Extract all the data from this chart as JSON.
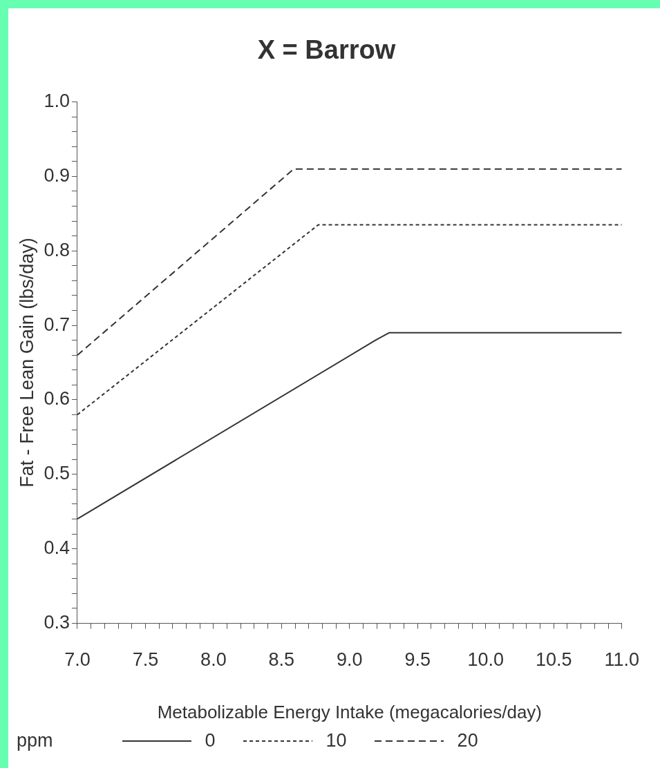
{
  "chart_data": {
    "type": "line",
    "title": "X = Barrow",
    "xlabel": "Metabolizable Energy Intake (megacalories/day)",
    "ylabel": "Fat - Free Lean Gain (lbs/day)",
    "legend_title": "ppm",
    "legend": "bottom",
    "xlim": [
      7.0,
      11.0
    ],
    "xticks": [
      {
        "value": 7.0,
        "label": "7.0"
      },
      {
        "value": 7.1,
        "label": null
      },
      {
        "value": 7.2,
        "label": null
      },
      {
        "value": 7.3,
        "label": null
      },
      {
        "value": 7.4,
        "label": null
      },
      {
        "value": 7.5,
        "label": "7.5"
      },
      {
        "value": 7.6,
        "label": null
      },
      {
        "value": 7.7,
        "label": null
      },
      {
        "value": 7.8,
        "label": null
      },
      {
        "value": 7.9,
        "label": null
      },
      {
        "value": 8.0,
        "label": "8.0"
      },
      {
        "value": 8.1,
        "label": null
      },
      {
        "value": 8.2,
        "label": null
      },
      {
        "value": 8.3,
        "label": null
      },
      {
        "value": 8.4,
        "label": null
      },
      {
        "value": 8.5,
        "label": "8.5"
      },
      {
        "value": 8.6,
        "label": null
      },
      {
        "value": 8.7,
        "label": null
      },
      {
        "value": 8.8,
        "label": null
      },
      {
        "value": 8.9,
        "label": null
      },
      {
        "value": 9.0,
        "label": "9.0"
      },
      {
        "value": 9.1,
        "label": null
      },
      {
        "value": 9.2,
        "label": null
      },
      {
        "value": 9.3,
        "label": null
      },
      {
        "value": 9.4,
        "label": null
      },
      {
        "value": 9.5,
        "label": "9.5"
      },
      {
        "value": 9.6,
        "label": null
      },
      {
        "value": 9.7,
        "label": null
      },
      {
        "value": 9.8,
        "label": null
      },
      {
        "value": 9.9,
        "label": null
      },
      {
        "value": 10.0,
        "label": "10.0"
      },
      {
        "value": 10.1,
        "label": null
      },
      {
        "value": 10.2,
        "label": null
      },
      {
        "value": 10.3,
        "label": null
      },
      {
        "value": 10.4,
        "label": null
      },
      {
        "value": 10.5,
        "label": "10.5"
      },
      {
        "value": 10.6,
        "label": null
      },
      {
        "value": 10.7,
        "label": null
      },
      {
        "value": 10.8,
        "label": null
      },
      {
        "value": 10.9,
        "label": null
      },
      {
        "value": 11.0,
        "label": "11.0"
      }
    ],
    "ylim": [
      0.3,
      1.0
    ],
    "yticks": [
      {
        "value": 0.3,
        "label": "0.3"
      },
      {
        "value": 0.32,
        "label": null
      },
      {
        "value": 0.34,
        "label": null
      },
      {
        "value": 0.36,
        "label": null
      },
      {
        "value": 0.38,
        "label": null
      },
      {
        "value": 0.4,
        "label": "0.4"
      },
      {
        "value": 0.42,
        "label": null
      },
      {
        "value": 0.44,
        "label": null
      },
      {
        "value": 0.46,
        "label": null
      },
      {
        "value": 0.48,
        "label": null
      },
      {
        "value": 0.5,
        "label": "0.5"
      },
      {
        "value": 0.52,
        "label": null
      },
      {
        "value": 0.54,
        "label": null
      },
      {
        "value": 0.56,
        "label": null
      },
      {
        "value": 0.58,
        "label": null
      },
      {
        "value": 0.6,
        "label": "0.6"
      },
      {
        "value": 0.62,
        "label": null
      },
      {
        "value": 0.64,
        "label": null
      },
      {
        "value": 0.66,
        "label": null
      },
      {
        "value": 0.68,
        "label": null
      },
      {
        "value": 0.7,
        "label": "0.7"
      },
      {
        "value": 0.72,
        "label": null
      },
      {
        "value": 0.74,
        "label": null
      },
      {
        "value": 0.76,
        "label": null
      },
      {
        "value": 0.78,
        "label": null
      },
      {
        "value": 0.8,
        "label": "0.8"
      },
      {
        "value": 0.82,
        "label": null
      },
      {
        "value": 0.84,
        "label": null
      },
      {
        "value": 0.86,
        "label": null
      },
      {
        "value": 0.88,
        "label": null
      },
      {
        "value": 0.9,
        "label": "0.9"
      },
      {
        "value": 0.92,
        "label": null
      },
      {
        "value": 0.94,
        "label": null
      },
      {
        "value": 0.96,
        "label": null
      },
      {
        "value": 0.98,
        "label": null
      },
      {
        "value": 1.0,
        "label": "1.0"
      }
    ],
    "marker": "none",
    "series": [
      {
        "name": "0",
        "color": "#333333",
        "line_style": "solid",
        "x": [
          7.0,
          9.19,
          9.29,
          11.0
        ],
        "values": [
          0.44,
          0.68,
          0.69,
          0.69
        ]
      },
      {
        "name": "10",
        "color": "#333333",
        "line_style": "dotted",
        "x": [
          7.0,
          8.77,
          11.0
        ],
        "values": [
          0.58,
          0.835,
          0.835
        ]
      },
      {
        "name": "20",
        "color": "#333333",
        "line_style": "dashed",
        "x": [
          7.0,
          8.59,
          11.0
        ],
        "values": [
          0.66,
          0.91,
          0.91
        ]
      }
    ]
  }
}
